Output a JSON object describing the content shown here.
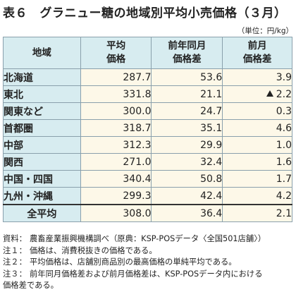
{
  "title": "表６　グラニュー糖の地域別平均小売価格（３月）",
  "unit": "（単位：円/kg）",
  "headers": {
    "region": "地域",
    "price_l1": "平均",
    "price_l2": "価格",
    "yoy_l1": "前年同月",
    "yoy_l2": "価格差",
    "mom_l1": "前月",
    "mom_l2": "価格差"
  },
  "rows": [
    {
      "region": "北海道",
      "price": "287.7",
      "yoy": "53.6",
      "mom": "3.9",
      "mom_sign": ""
    },
    {
      "region": "東北",
      "price": "331.8",
      "yoy": "21.1",
      "mom": "2.2",
      "mom_sign": "▲"
    },
    {
      "region": "関東など",
      "price": "300.0",
      "yoy": "24.7",
      "mom": "0.3",
      "mom_sign": ""
    },
    {
      "region": "首都圏",
      "price": "318.7",
      "yoy": "35.1",
      "mom": "4.6",
      "mom_sign": ""
    },
    {
      "region": "中部",
      "price": "312.3",
      "yoy": "29.9",
      "mom": "1.0",
      "mom_sign": ""
    },
    {
      "region": "関西",
      "price": "271.0",
      "yoy": "32.4",
      "mom": "1.6",
      "mom_sign": ""
    },
    {
      "region": "中国・四国",
      "price": "340.4",
      "yoy": "50.8",
      "mom": "1.7",
      "mom_sign": ""
    },
    {
      "region": "九州・沖縄",
      "price": "299.3",
      "yoy": "42.4",
      "mom": "4.2",
      "mom_sign": ""
    }
  ],
  "average": {
    "region": "全平均",
    "price": "308.0",
    "yoy": "36.4",
    "mom": "2.1"
  },
  "notes": [
    {
      "label": "資料：",
      "text": "農畜産業振興機構調べ（原典：KSP-POSデータ〈全国501店舗〉）"
    },
    {
      "label": "注１：",
      "text": "価格は、消費税抜きの価格である。"
    },
    {
      "label": "注２：",
      "text": "平均価格は、店舗別商品別の最高価格の単純平均である。"
    },
    {
      "label": "注３：",
      "text": "前年同月価格差および前月価格差は、KSP-POSデータ内における",
      "text2": "価格差である。"
    }
  ]
}
